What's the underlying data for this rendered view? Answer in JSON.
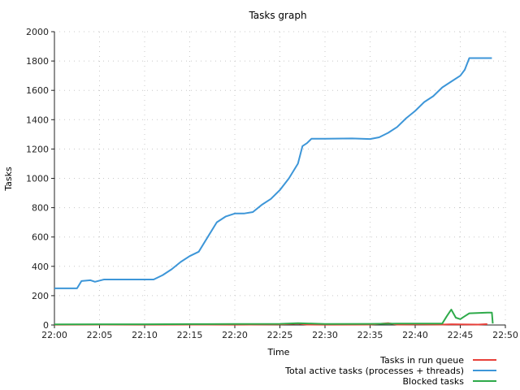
{
  "chart_data": {
    "type": "line",
    "title": "Tasks graph",
    "xlabel": "Time",
    "ylabel": "Tasks",
    "grid": true,
    "legend_position": "bottom-right",
    "xlim": [
      "22:00",
      "22:50"
    ],
    "ylim": [
      0,
      2000
    ],
    "x_ticks": [
      "22:00",
      "22:05",
      "22:10",
      "22:15",
      "22:20",
      "22:25",
      "22:30",
      "22:35",
      "22:40",
      "22:45",
      "22:50"
    ],
    "y_ticks": [
      0,
      200,
      400,
      600,
      800,
      1000,
      1200,
      1400,
      1600,
      1800,
      2000
    ],
    "series": [
      {
        "name": "Tasks in run queue",
        "color": "#e8403a",
        "points": [
          [
            "22:00",
            2
          ],
          [
            "22:05",
            3
          ],
          [
            "22:10",
            2
          ],
          [
            "22:15",
            3
          ],
          [
            "22:20",
            2
          ],
          [
            "22:25",
            4
          ],
          [
            "22:27",
            10
          ],
          [
            "22:28",
            3
          ],
          [
            "22:30",
            2
          ],
          [
            "22:35",
            3
          ],
          [
            "22:37",
            12
          ],
          [
            "22:38",
            3
          ],
          [
            "22:40",
            4
          ],
          [
            "22:43",
            3
          ],
          [
            "22:44",
            5
          ],
          [
            "22:45",
            4
          ],
          [
            "22:47",
            3
          ],
          [
            "22:48",
            6
          ]
        ]
      },
      {
        "name": "Total active tasks (processes + threads)",
        "color": "#3d96d8",
        "points": [
          [
            "22:00",
            250
          ],
          [
            "22:02.5",
            250
          ],
          [
            "22:03",
            300
          ],
          [
            "22:04",
            305
          ],
          [
            "22:04.5",
            295
          ],
          [
            "22:05.5",
            310
          ],
          [
            "22:08",
            310
          ],
          [
            "22:11",
            310
          ],
          [
            "22:12",
            340
          ],
          [
            "22:13",
            380
          ],
          [
            "22:14",
            430
          ],
          [
            "22:15",
            470
          ],
          [
            "22:16",
            500
          ],
          [
            "22:17",
            600
          ],
          [
            "22:18",
            700
          ],
          [
            "22:19",
            740
          ],
          [
            "22:20",
            760
          ],
          [
            "22:21",
            760
          ],
          [
            "22:22",
            770
          ],
          [
            "22:23",
            820
          ],
          [
            "22:24",
            860
          ],
          [
            "22:25",
            920
          ],
          [
            "22:26",
            1000
          ],
          [
            "22:27",
            1100
          ],
          [
            "22:27.5",
            1220
          ],
          [
            "22:28",
            1240
          ],
          [
            "22:28.5",
            1270
          ],
          [
            "22:30",
            1270
          ],
          [
            "22:33",
            1272
          ],
          [
            "22:35",
            1268
          ],
          [
            "22:36",
            1280
          ],
          [
            "22:37",
            1310
          ],
          [
            "22:38",
            1350
          ],
          [
            "22:39",
            1410
          ],
          [
            "22:40",
            1460
          ],
          [
            "22:41",
            1520
          ],
          [
            "22:42",
            1560
          ],
          [
            "22:43",
            1620
          ],
          [
            "22:44",
            1660
          ],
          [
            "22:45",
            1700
          ],
          [
            "22:45.5",
            1740
          ],
          [
            "22:46",
            1820
          ],
          [
            "22:48.5",
            1820
          ]
        ]
      },
      {
        "name": "Blocked tasks",
        "color": "#2eaa4a",
        "points": [
          [
            "22:00",
            4
          ],
          [
            "22:05",
            5
          ],
          [
            "22:10",
            5
          ],
          [
            "22:15",
            6
          ],
          [
            "22:20",
            7
          ],
          [
            "22:25",
            8
          ],
          [
            "22:27",
            12
          ],
          [
            "22:30",
            7
          ],
          [
            "22:35",
            8
          ],
          [
            "22:38",
            10
          ],
          [
            "22:40",
            10
          ],
          [
            "22:43",
            10
          ],
          [
            "22:43.5",
            60
          ],
          [
            "22:44",
            105
          ],
          [
            "22:44.5",
            50
          ],
          [
            "22:45",
            40
          ],
          [
            "22:45.5",
            60
          ],
          [
            "22:46",
            80
          ],
          [
            "22:48",
            85
          ],
          [
            "22:48.5",
            85
          ],
          [
            "22:48.6",
            10
          ]
        ]
      }
    ]
  }
}
